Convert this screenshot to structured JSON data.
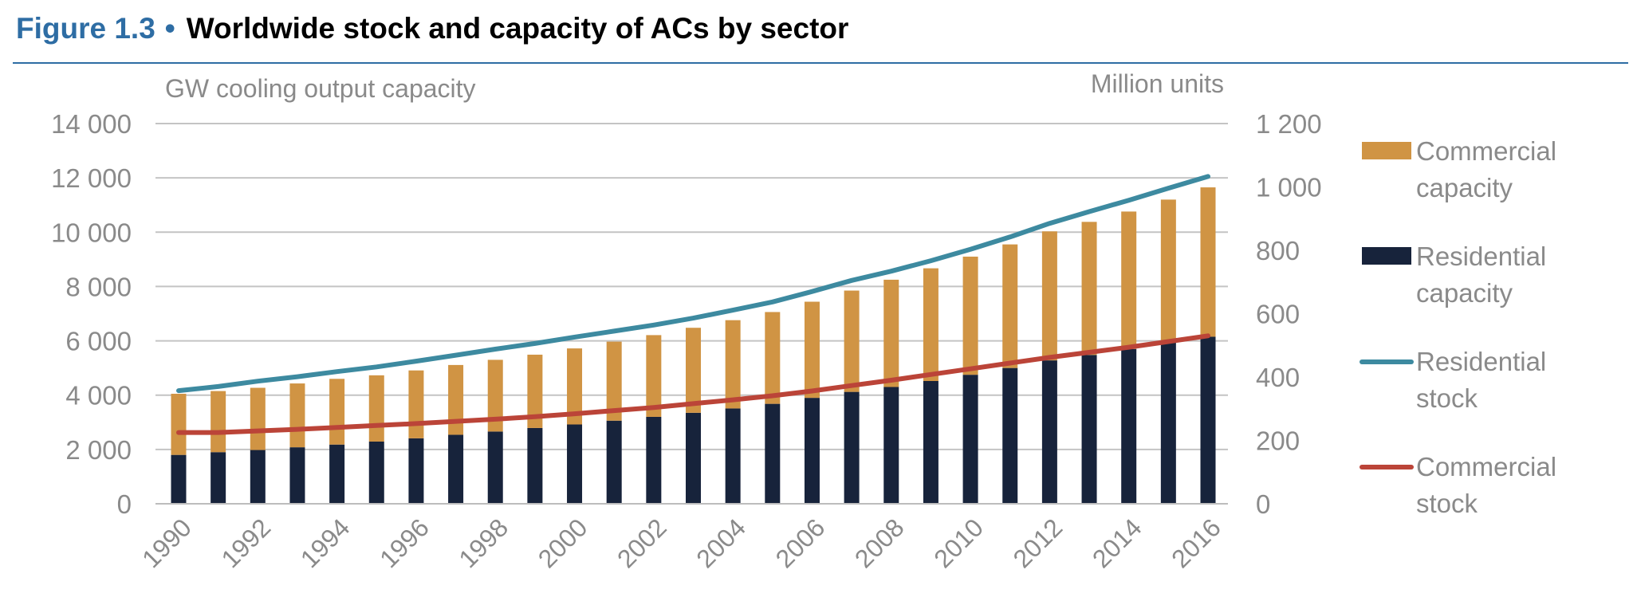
{
  "figure": {
    "label": "Figure 1.3",
    "bullet": "•",
    "title": "Worldwide stock and capacity of ACs by sector"
  },
  "chart_data": {
    "type": "bar",
    "stacked": true,
    "left_axis_label": "GW cooling output capacity",
    "right_axis_label": "Million units",
    "left_ylim": [
      0,
      14000
    ],
    "right_ylim": [
      0,
      1200
    ],
    "left_ticks": [
      "0",
      "2 000",
      "4 000",
      "6 000",
      "8 000",
      "10 000",
      "12 000",
      "14 000"
    ],
    "right_ticks": [
      "0",
      "200",
      "400",
      "600",
      "800",
      "1 000",
      "1 200"
    ],
    "x_tick_labels": [
      "1990",
      "1992",
      "1994",
      "1996",
      "1998",
      "2000",
      "2002",
      "2004",
      "2006",
      "2008",
      "2010",
      "2012",
      "2014",
      "2016"
    ],
    "x": [
      1990,
      1991,
      1992,
      1993,
      1994,
      1995,
      1996,
      1997,
      1998,
      1999,
      2000,
      2001,
      2002,
      2003,
      2004,
      2005,
      2006,
      2007,
      2008,
      2009,
      2010,
      2011,
      2012,
      2013,
      2014,
      2015,
      2016
    ],
    "grid": true,
    "legend_position": "right",
    "series": [
      {
        "name": "Residential capacity",
        "kind": "bar",
        "axis": "left",
        "color": "#17233b",
        "values": [
          1800,
          1900,
          1980,
          2080,
          2180,
          2290,
          2410,
          2540,
          2660,
          2790,
          2920,
          3060,
          3200,
          3350,
          3510,
          3680,
          3900,
          4120,
          4300,
          4520,
          4750,
          5000,
          5280,
          5480,
          5700,
          5950,
          6150
        ]
      },
      {
        "name": "Commercial capacity",
        "kind": "bar",
        "axis": "left",
        "color": "#d09444",
        "values": [
          2250,
          2250,
          2290,
          2350,
          2420,
          2440,
          2500,
          2570,
          2640,
          2700,
          2800,
          2910,
          3010,
          3130,
          3250,
          3380,
          3540,
          3730,
          3950,
          4150,
          4350,
          4550,
          4750,
          4900,
          5060,
          5250,
          5500
        ]
      },
      {
        "name": "Residential stock",
        "kind": "line",
        "axis": "right",
        "color": "#3d8aa0",
        "values": [
          357,
          370,
          387,
          401,
          417,
          432,
          450,
          469,
          488,
          506,
          526,
          545,
          564,
          586,
          611,
          637,
          670,
          705,
          734,
          767,
          803,
          842,
          885,
          922,
          958,
          996,
          1033
        ]
      },
      {
        "name": "Commercial stock",
        "kind": "line",
        "axis": "right",
        "color": "#bb4438",
        "values": [
          225,
          225,
          230,
          235,
          241,
          247,
          253,
          260,
          267,
          275,
          284,
          294,
          304,
          316,
          328,
          341,
          356,
          373,
          390,
          408,
          426,
          444,
          462,
          478,
          494,
          512,
          530
        ]
      }
    ],
    "legend": [
      {
        "line1": "Commercial",
        "line2": "capacity",
        "kind": "bar",
        "color": "#d09444"
      },
      {
        "line1": "Residential",
        "line2": "capacity",
        "kind": "bar",
        "color": "#17233b"
      },
      {
        "line1": "Residential",
        "line2": "stock",
        "kind": "line",
        "color": "#3d8aa0"
      },
      {
        "line1": "Commercial",
        "line2": "stock",
        "kind": "line",
        "color": "#bb4438"
      }
    ]
  }
}
